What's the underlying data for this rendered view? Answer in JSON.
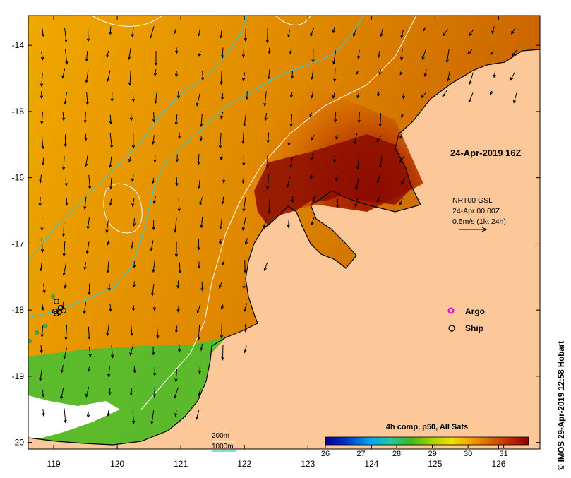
{
  "map": {
    "date_label": "24-Apr-2019 16Z",
    "product": {
      "line1": "NRT00 GSL",
      "line2": "24-Apr 00:00Z",
      "line3": "0.5m/s (1kt 24h)"
    },
    "legend": {
      "argo": "Argo",
      "ship": "Ship"
    },
    "contours": {
      "c200": "200m",
      "c1000": "1000m"
    },
    "colorbar": {
      "title": "4h comp, p50, All Sats",
      "ticks": [
        "26",
        "27",
        "28",
        "29",
        "30",
        "31"
      ],
      "range": [
        26,
        31.7
      ]
    },
    "credit": "© IMOS 29-Apr-2019 12:58 Hobart",
    "x_ticks": [
      "119",
      "120",
      "121",
      "122",
      "123",
      "124",
      "125",
      "126"
    ],
    "y_ticks": [
      "-14",
      "-15",
      "-16",
      "-17",
      "-18",
      "-19",
      "-20"
    ],
    "x_range": [
      118.6,
      126.65
    ],
    "y_range": [
      -20.1,
      -13.55
    ],
    "colors": {
      "land": "#fcc89a",
      "sst_low": "#00008c",
      "sst_high": "#8c0000",
      "contour_200": "#ffffff",
      "contour_1000": "#3fc6c6",
      "argo": "#e000e0",
      "ship": "#000000"
    }
  }
}
